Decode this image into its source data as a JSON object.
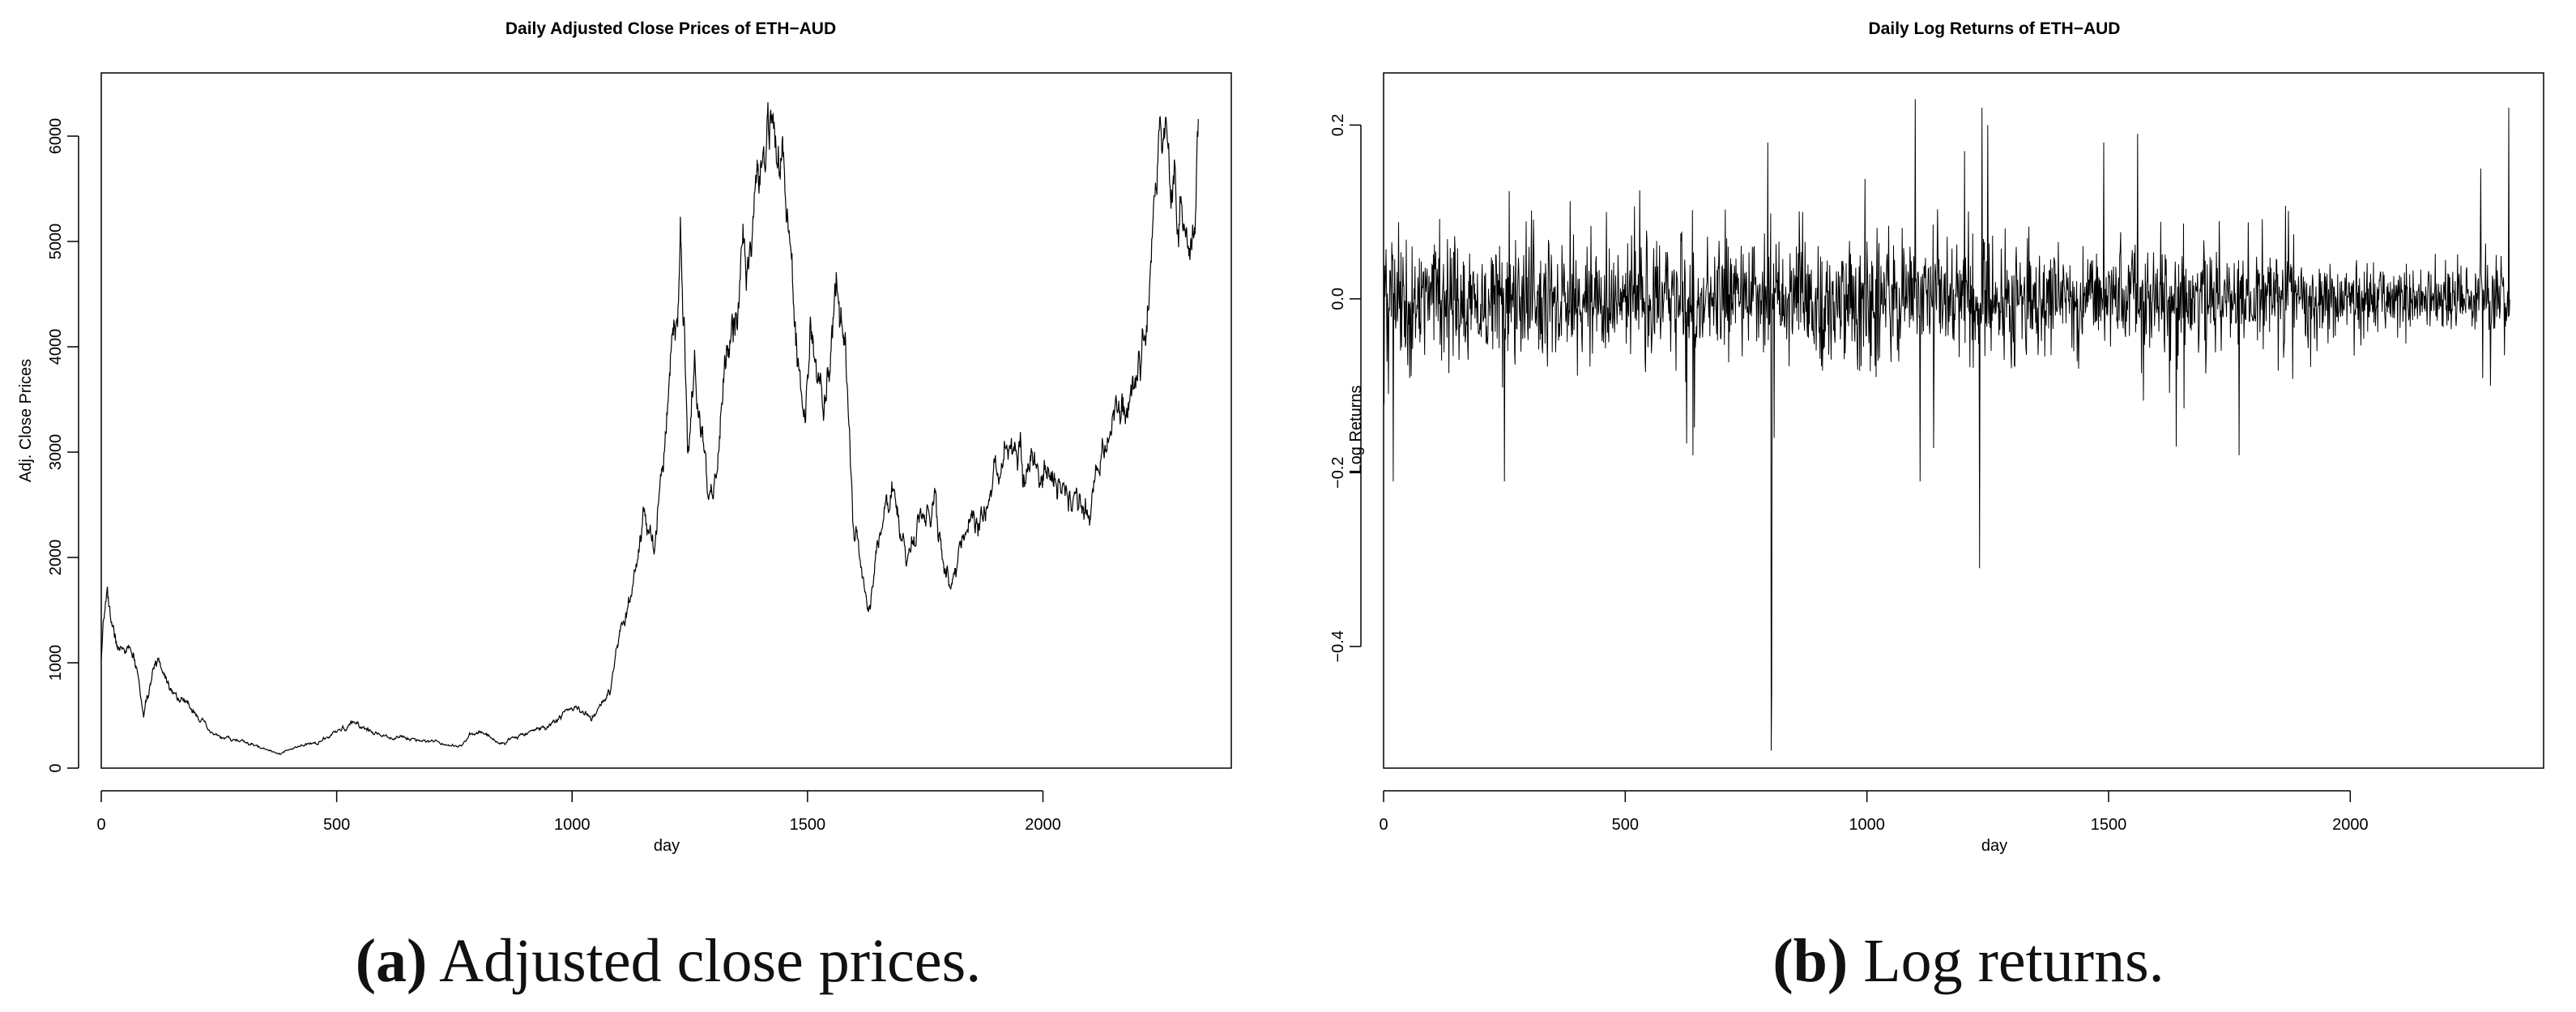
{
  "chart_data": [
    {
      "type": "line",
      "title": "Daily Adjusted Close Prices of ETH−AUD",
      "xlabel": "day",
      "ylabel": "Adj. Close Prices",
      "xlim": [
        0,
        2400
      ],
      "ylim": [
        0,
        6600
      ],
      "x_ticks": [
        0,
        500,
        1000,
        1500,
        2000
      ],
      "y_ticks": [
        0,
        1000,
        2000,
        3000,
        4000,
        5000,
        6000
      ],
      "x_tick_labels": [
        "0",
        "500",
        "1000",
        "1500",
        "2000"
      ],
      "y_tick_labels": [
        "0",
        "1000",
        "2000",
        "3000",
        "4000",
        "5000",
        "6000"
      ],
      "n_days": 2330,
      "series": [
        {
          "x": [
            0,
            12,
            25,
            40,
            55,
            75,
            90,
            105,
            120,
            140,
            160,
            180,
            200,
            230,
            260,
            300,
            340,
            380,
            420,
            470,
            510,
            540,
            580,
            640,
            700,
            760,
            800,
            850,
            900,
            950,
            1000,
            1040,
            1080,
            1100,
            1130,
            1150,
            1175,
            1200,
            1220,
            1230,
            1245,
            1260,
            1280,
            1300,
            1330,
            1360,
            1380,
            1400,
            1420,
            1440,
            1460,
            1490,
            1510,
            1540,
            1560,
            1580,
            1600,
            1630,
            1660,
            1680,
            1710,
            1740,
            1770,
            1800,
            1830,
            1880,
            1920,
            1950,
            2000,
            2050,
            2100,
            2150,
            2190,
            2220,
            2240,
            2260,
            2270,
            2290,
            2310,
            2330
          ],
          "y": [
            1000,
            1700,
            1300,
            1100,
            1150,
            950,
            500,
            800,
            1050,
            850,
            700,
            600,
            550,
            330,
            290,
            250,
            190,
            140,
            200,
            260,
            360,
            430,
            330,
            290,
            260,
            210,
            360,
            230,
            340,
            400,
            580,
            480,
            700,
            1200,
            1700,
            2300,
            2100,
            3200,
            4500,
            5200,
            3100,
            3700,
            2900,
            2500,
            4000,
            4600,
            5000,
            5900,
            6500,
            5800,
            5000,
            3400,
            4100,
            3600,
            4500,
            4000,
            2300,
            1500,
            2400,
            2600,
            2000,
            2300,
            2500,
            1700,
            2200,
            2500,
            3100,
            2900,
            2800,
            2600,
            2500,
            3300,
            3500,
            4300,
            5200,
            6100,
            5700,
            5400,
            4800,
            5700
          ]
        }
      ]
    },
    {
      "type": "line",
      "title": "Daily Log Returns of ETH−AUD",
      "xlabel": "day",
      "ylabel": "Log Returns",
      "xlim": [
        0,
        2400
      ],
      "ylim": [
        -0.54,
        0.26
      ],
      "x_ticks": [
        0,
        500,
        1000,
        1500,
        2000
      ],
      "y_ticks": [
        0.2,
        0.0,
        -0.2,
        -0.4
      ],
      "x_tick_labels": [
        "0",
        "500",
        "1000",
        "1500",
        "2000"
      ],
      "y_tick_labels": [
        "0.2",
        "0.0",
        "−0.2",
        "−0.4"
      ],
      "n_days": 2330,
      "volatility_profile": {
        "x": [
          0,
          100,
          400,
          800,
          1100,
          1300,
          1700,
          2000,
          2200,
          2330
        ],
        "sd": [
          0.055,
          0.05,
          0.045,
          0.045,
          0.05,
          0.042,
          0.038,
          0.028,
          0.022,
          0.03
        ]
      },
      "spikes": [
        {
          "x": 802,
          "y": -0.52
        },
        {
          "x": 803,
          "y": -0.45
        },
        {
          "x": 808,
          "y": -0.16
        },
        {
          "x": 795,
          "y": 0.18
        },
        {
          "x": 1233,
          "y": -0.31
        },
        {
          "x": 1238,
          "y": 0.22
        },
        {
          "x": 1100,
          "y": 0.23
        },
        {
          "x": 1110,
          "y": -0.21
        },
        {
          "x": 2328,
          "y": 0.22
        },
        {
          "x": 20,
          "y": -0.21
        },
        {
          "x": 250,
          "y": -0.21
        },
        {
          "x": 1770,
          "y": -0.18
        },
        {
          "x": 640,
          "y": -0.18
        },
        {
          "x": 1640,
          "y": -0.17
        },
        {
          "x": 1250,
          "y": 0.2
        },
        {
          "x": 1490,
          "y": 0.18
        },
        {
          "x": 1560,
          "y": 0.19
        },
        {
          "x": 2270,
          "y": 0.15
        },
        {
          "x": 2290,
          "y": -0.1
        }
      ]
    }
  ],
  "captions": [
    {
      "letter": "(a)",
      "text": " Adjusted close prices."
    },
    {
      "letter": "(b)",
      "text": " Log returns."
    }
  ]
}
